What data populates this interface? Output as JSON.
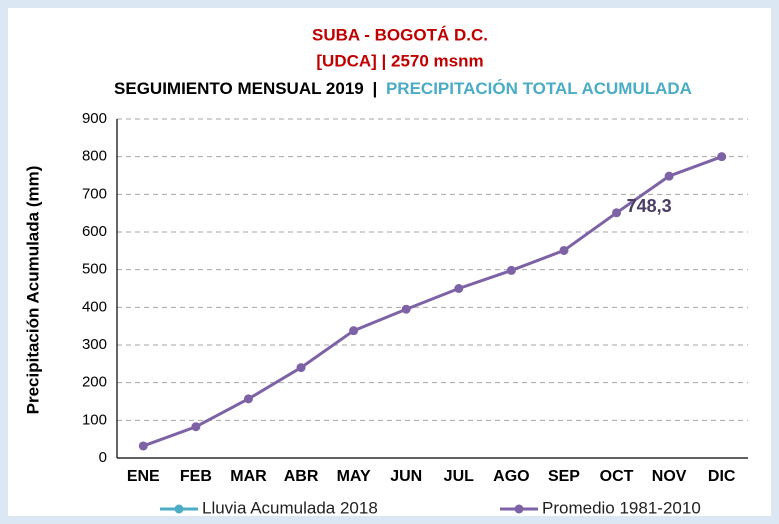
{
  "chart_data": {
    "type": "line",
    "title": "SUBA - BOGOTÁ D.C.",
    "subtitle": "[UDCA] | 2570 msnm",
    "heading_left": "SEGUIMIENTO MENSUAL 2019",
    "heading_separator": "|",
    "heading_right": "PRECIPITACIÓN TOTAL ACUMULADA",
    "y_label": "Precipitación Acumulada (mm)",
    "categories": [
      "ENE",
      "FEB",
      "MAR",
      "ABR",
      "MAY",
      "JUN",
      "JUL",
      "AGO",
      "SEP",
      "OCT",
      "NOV",
      "DIC"
    ],
    "series": [
      {
        "name": "Lluvia Acumulada 2018",
        "color": "#4bacc6",
        "values": [
          null,
          null,
          null,
          null,
          null,
          null,
          null,
          null,
          null,
          null,
          null,
          null
        ]
      },
      {
        "name": "Promedio 1981-2010",
        "color": "#7e62a6",
        "values": [
          32,
          83,
          157,
          240,
          338,
          395,
          450,
          498,
          551,
          651,
          748.3,
          800
        ],
        "value_labels": [
          null,
          null,
          null,
          null,
          null,
          null,
          null,
          null,
          null,
          null,
          "748,3",
          null
        ]
      }
    ],
    "ylim": [
      0,
      900
    ],
    "yticks": [
      0,
      100,
      200,
      300,
      400,
      500,
      600,
      700,
      800,
      900
    ],
    "grid": true,
    "legend": "bottom"
  }
}
